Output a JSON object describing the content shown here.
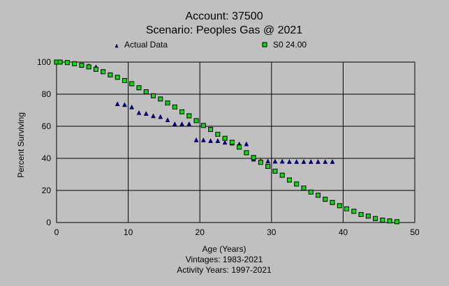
{
  "chart_data": {
    "type": "scatter",
    "title": "Account: 37500",
    "subtitle": "Scenario: Peoples Gas @ 2021",
    "xlabel": "Age (Years)",
    "ylabel": "Percent Surviving",
    "notes": [
      "Vintages: 1983-2021",
      "Activity Years: 1997-2021"
    ],
    "xlim": [
      0,
      50
    ],
    "ylim": [
      0,
      100
    ],
    "xticks": [
      0,
      10,
      20,
      30,
      40,
      50
    ],
    "yticks": [
      0,
      20,
      40,
      60,
      80,
      100
    ],
    "grid": true,
    "legend_placement": "top",
    "series": [
      {
        "name": "Actual Data",
        "marker": "triangle",
        "color": "#0000a0",
        "x": [
          0,
          1.5,
          2.5,
          3.5,
          4.5,
          5.5,
          8.5,
          9.5,
          10.5,
          11.5,
          12.5,
          13.5,
          14.5,
          15.5,
          16.5,
          17.5,
          18.5,
          19.5,
          20.5,
          21.5,
          22.5,
          23.5,
          24.5,
          25.5,
          26.5,
          27.5,
          28.5,
          29.5,
          30.5,
          31.5,
          32.5,
          33.5,
          34.5,
          35.5,
          36.5,
          37.5,
          38.5
        ],
        "y": [
          100,
          99.7,
          99.2,
          98.5,
          97.8,
          97,
          74,
          73.5,
          72,
          68.5,
          68,
          66.5,
          66,
          64,
          61.5,
          61.5,
          61.5,
          51.5,
          51.5,
          51,
          51,
          50,
          49.5,
          49,
          49,
          39.5,
          38.5,
          38.3,
          38.2,
          38.2,
          38,
          38,
          38,
          38,
          38,
          38,
          38
        ]
      },
      {
        "name": "S0 24.00",
        "marker": "square",
        "color": "#00e000",
        "x": [
          0,
          0.5,
          1.5,
          2.5,
          3.5,
          4.5,
          5.5,
          6.5,
          7.5,
          8.5,
          9.5,
          10.5,
          11.5,
          12.5,
          13.5,
          14.5,
          15.5,
          16.5,
          17.5,
          18.5,
          19.5,
          20.5,
          21.5,
          22.5,
          23.5,
          24.5,
          25.5,
          26.5,
          27.5,
          28.5,
          29.5,
          30.5,
          31.5,
          32.5,
          33.5,
          34.5,
          35.5,
          36.5,
          37.5,
          38.5,
          39.5,
          40.5,
          41.5,
          42.5,
          43.5,
          44.5,
          45.5,
          46.5,
          47.5
        ],
        "y": [
          100,
          100,
          99.7,
          99,
          98,
          97,
          95.5,
          94,
          92,
          90.5,
          88.5,
          86.5,
          84,
          81.5,
          79,
          77,
          74.5,
          72,
          69,
          66.5,
          63.5,
          60.5,
          58,
          55,
          52.5,
          50,
          47,
          43.5,
          40.5,
          37.5,
          35,
          32,
          29.5,
          26.5,
          24,
          21.5,
          19,
          17,
          14.5,
          12.5,
          10.5,
          8.5,
          7,
          5,
          4,
          2.5,
          1.5,
          1,
          0.5
        ]
      }
    ]
  }
}
